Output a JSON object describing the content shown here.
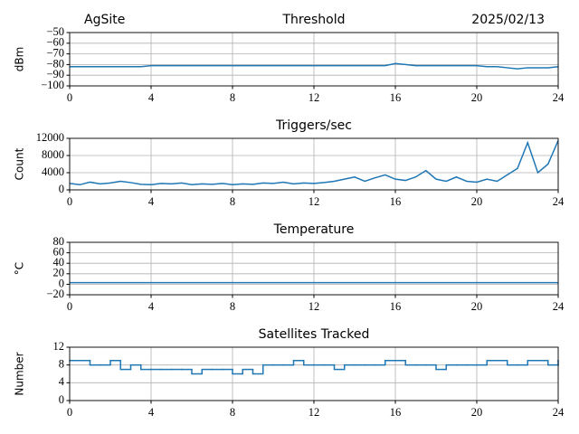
{
  "chart_data": [
    {
      "type": "line",
      "title": "Threshold",
      "site": "AgSite",
      "date": "2025/02/13",
      "ylabel": "dBm",
      "color": "#1f77b4",
      "grid": true,
      "xlim": [
        0,
        24
      ],
      "xticks": [
        0,
        4,
        8,
        12,
        16,
        20,
        24
      ],
      "ylim": [
        -100,
        -50
      ],
      "yticks": [
        {
          "value": -100,
          "label": "−100"
        },
        {
          "value": -90,
          "label": "−90"
        },
        {
          "value": -80,
          "label": "−80"
        },
        {
          "value": -70,
          "label": "−70"
        },
        {
          "value": -60,
          "label": "−60"
        },
        {
          "value": -50,
          "label": "−50"
        }
      ],
      "x": [
        0,
        0.5,
        1,
        1.5,
        2,
        2.5,
        3,
        3.5,
        4,
        4.5,
        5,
        5.5,
        6,
        6.5,
        7,
        7.5,
        8,
        8.5,
        9,
        9.5,
        10,
        10.5,
        11,
        11.5,
        12,
        12.5,
        13,
        13.5,
        14,
        14.5,
        15,
        15.5,
        16,
        16.5,
        17,
        17.5,
        18,
        18.5,
        19,
        19.5,
        20,
        20.5,
        21,
        21.5,
        22,
        22.5,
        23,
        23.5,
        24
      ],
      "values": [
        -82,
        -82,
        -82,
        -82,
        -82,
        -82,
        -82,
        -82,
        -81,
        -81,
        -81,
        -81,
        -81,
        -81,
        -81,
        -81,
        -81,
        -81,
        -81,
        -81,
        -81,
        -81,
        -81,
        -81,
        -81,
        -81,
        -81,
        -81,
        -81,
        -81,
        -81,
        -81,
        -79,
        -80,
        -81,
        -81,
        -81,
        -81,
        -81,
        -81,
        -81,
        -82,
        -82,
        -83,
        -84,
        -83,
        -83,
        -83,
        -82
      ]
    },
    {
      "type": "line",
      "title": "Triggers/sec",
      "ylabel": "Count",
      "color": "#1f77b4",
      "grid": true,
      "xlim": [
        0,
        24
      ],
      "xticks": [
        0,
        4,
        8,
        12,
        16,
        20,
        24
      ],
      "ylim": [
        0,
        12000
      ],
      "yticks": [
        0,
        4000,
        8000,
        12000
      ],
      "x": [
        0,
        0.5,
        1,
        1.5,
        2,
        2.5,
        3,
        3.5,
        4,
        4.5,
        5,
        5.5,
        6,
        6.5,
        7,
        7.5,
        8,
        8.5,
        9,
        9.5,
        10,
        10.5,
        11,
        11.5,
        12,
        12.5,
        13,
        13.5,
        14,
        14.5,
        15,
        15.5,
        16,
        16.5,
        17,
        17.5,
        18,
        18.5,
        19,
        19.5,
        20,
        20.5,
        21,
        21.5,
        22,
        22.5,
        23,
        23.5,
        24
      ],
      "values": [
        1500,
        1200,
        1800,
        1400,
        1600,
        2000,
        1700,
        1300,
        1200,
        1500,
        1400,
        1600,
        1200,
        1400,
        1300,
        1500,
        1200,
        1400,
        1300,
        1600,
        1500,
        1800,
        1400,
        1600,
        1500,
        1700,
        2000,
        2500,
        3000,
        2000,
        2800,
        3500,
        2500,
        2200,
        3000,
        4500,
        2500,
        2000,
        3000,
        2000,
        1800,
        2500,
        2000,
        3500,
        5000,
        11000,
        4000,
        6000,
        11500
      ]
    },
    {
      "type": "line",
      "title": "Temperature",
      "ylabel": "°C",
      "color": "#1f77b4",
      "grid": true,
      "xlim": [
        0,
        24
      ],
      "xticks": [
        0,
        4,
        8,
        12,
        16,
        20,
        24
      ],
      "ylim": [
        -20,
        80
      ],
      "yticks": [
        {
          "value": -20,
          "label": "−20"
        },
        0,
        20,
        40,
        60,
        80
      ],
      "x": [
        0,
        2,
        4,
        6,
        8,
        10,
        12,
        14,
        16,
        18,
        20,
        22,
        24
      ],
      "values": [
        3,
        3,
        3,
        3,
        3,
        3,
        3,
        3,
        3,
        3,
        3,
        3,
        3
      ]
    },
    {
      "type": "step",
      "title": "Satellites Tracked",
      "ylabel": "Number",
      "color": "#1f77b4",
      "grid": true,
      "xlim": [
        0,
        24
      ],
      "xticks": [
        0,
        4,
        8,
        12,
        16,
        20,
        24
      ],
      "ylim": [
        0,
        12
      ],
      "yticks": [
        0,
        4,
        8,
        12
      ],
      "x": [
        0,
        0.5,
        1,
        1.5,
        2,
        2.5,
        3,
        3.5,
        4,
        4.5,
        5,
        5.5,
        6,
        6.5,
        7,
        7.5,
        8,
        8.5,
        9,
        9.5,
        10,
        10.5,
        11,
        11.5,
        12,
        12.5,
        13,
        13.5,
        14,
        14.5,
        15,
        15.5,
        16,
        16.5,
        17,
        17.5,
        18,
        18.5,
        19,
        19.5,
        20,
        20.5,
        21,
        21.5,
        22,
        22.5,
        23,
        23.5,
        24
      ],
      "values": [
        9,
        9,
        8,
        8,
        9,
        7,
        8,
        7,
        7,
        7,
        7,
        7,
        6,
        7,
        7,
        7,
        6,
        7,
        6,
        8,
        8,
        8,
        9,
        8,
        8,
        8,
        7,
        8,
        8,
        8,
        8,
        9,
        9,
        8,
        8,
        8,
        7,
        8,
        8,
        8,
        8,
        9,
        9,
        8,
        8,
        9,
        9,
        8,
        9
      ]
    }
  ]
}
